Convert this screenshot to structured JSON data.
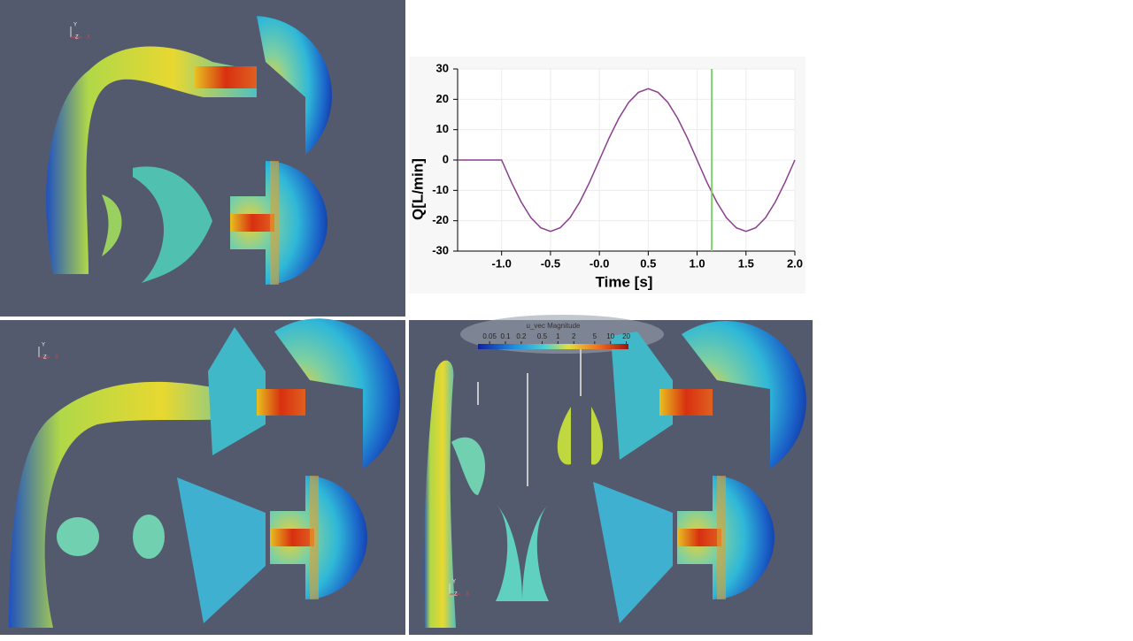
{
  "chart_data": {
    "type": "line",
    "xlabel": "Time [s]",
    "ylabel": "Q[L/min]",
    "x": [
      -1.45,
      -1.0,
      -0.9,
      -0.8,
      -0.7,
      -0.6,
      -0.5,
      -0.4,
      -0.3,
      -0.2,
      -0.1,
      0.0,
      0.1,
      0.2,
      0.3,
      0.4,
      0.5,
      0.6,
      0.7,
      0.8,
      0.9,
      1.0,
      1.1,
      1.2,
      1.3,
      1.4,
      1.5,
      1.6,
      1.7,
      1.8,
      1.9,
      2.0
    ],
    "values": [
      0,
      0,
      -7.3,
      -13.8,
      -19.0,
      -22.3,
      -23.5,
      -22.3,
      -19.0,
      -13.8,
      -7.3,
      0,
      7.3,
      13.8,
      19.0,
      22.3,
      23.5,
      22.3,
      19.0,
      13.8,
      7.3,
      0,
      -7.3,
      -13.8,
      -19.0,
      -22.3,
      -23.5,
      -22.3,
      -19.0,
      -13.8,
      -7.3,
      0
    ],
    "color": "#8a3f8e",
    "current_time": 1.15,
    "current_time_color": "#7fd36b",
    "xlim": [
      -1.45,
      2.0
    ],
    "xticks": [
      {
        "value": -1,
        "label": "-1.0"
      },
      {
        "value": -0.5,
        "label": "-0.5"
      },
      {
        "value": 0,
        "label": "-0.0"
      },
      {
        "value": 0.5,
        "label": "0.5"
      },
      {
        "value": 1,
        "label": "1.0"
      },
      {
        "value": 1.5,
        "label": "1.5"
      },
      {
        "value": 2,
        "label": "2.0"
      }
    ],
    "ylim": [
      -30,
      30
    ],
    "yticks": [
      -30,
      -20,
      -10,
      0,
      10,
      20,
      30
    ],
    "grid": true
  },
  "colorbar": {
    "title": "u_vec Magnitude",
    "range": [
      0.03,
      22
    ],
    "ticks": [
      0.05,
      0.1,
      0.2,
      0.5,
      1,
      2,
      5,
      10,
      20
    ]
  },
  "orientation_axes": [
    "Y",
    "Z",
    "X"
  ]
}
